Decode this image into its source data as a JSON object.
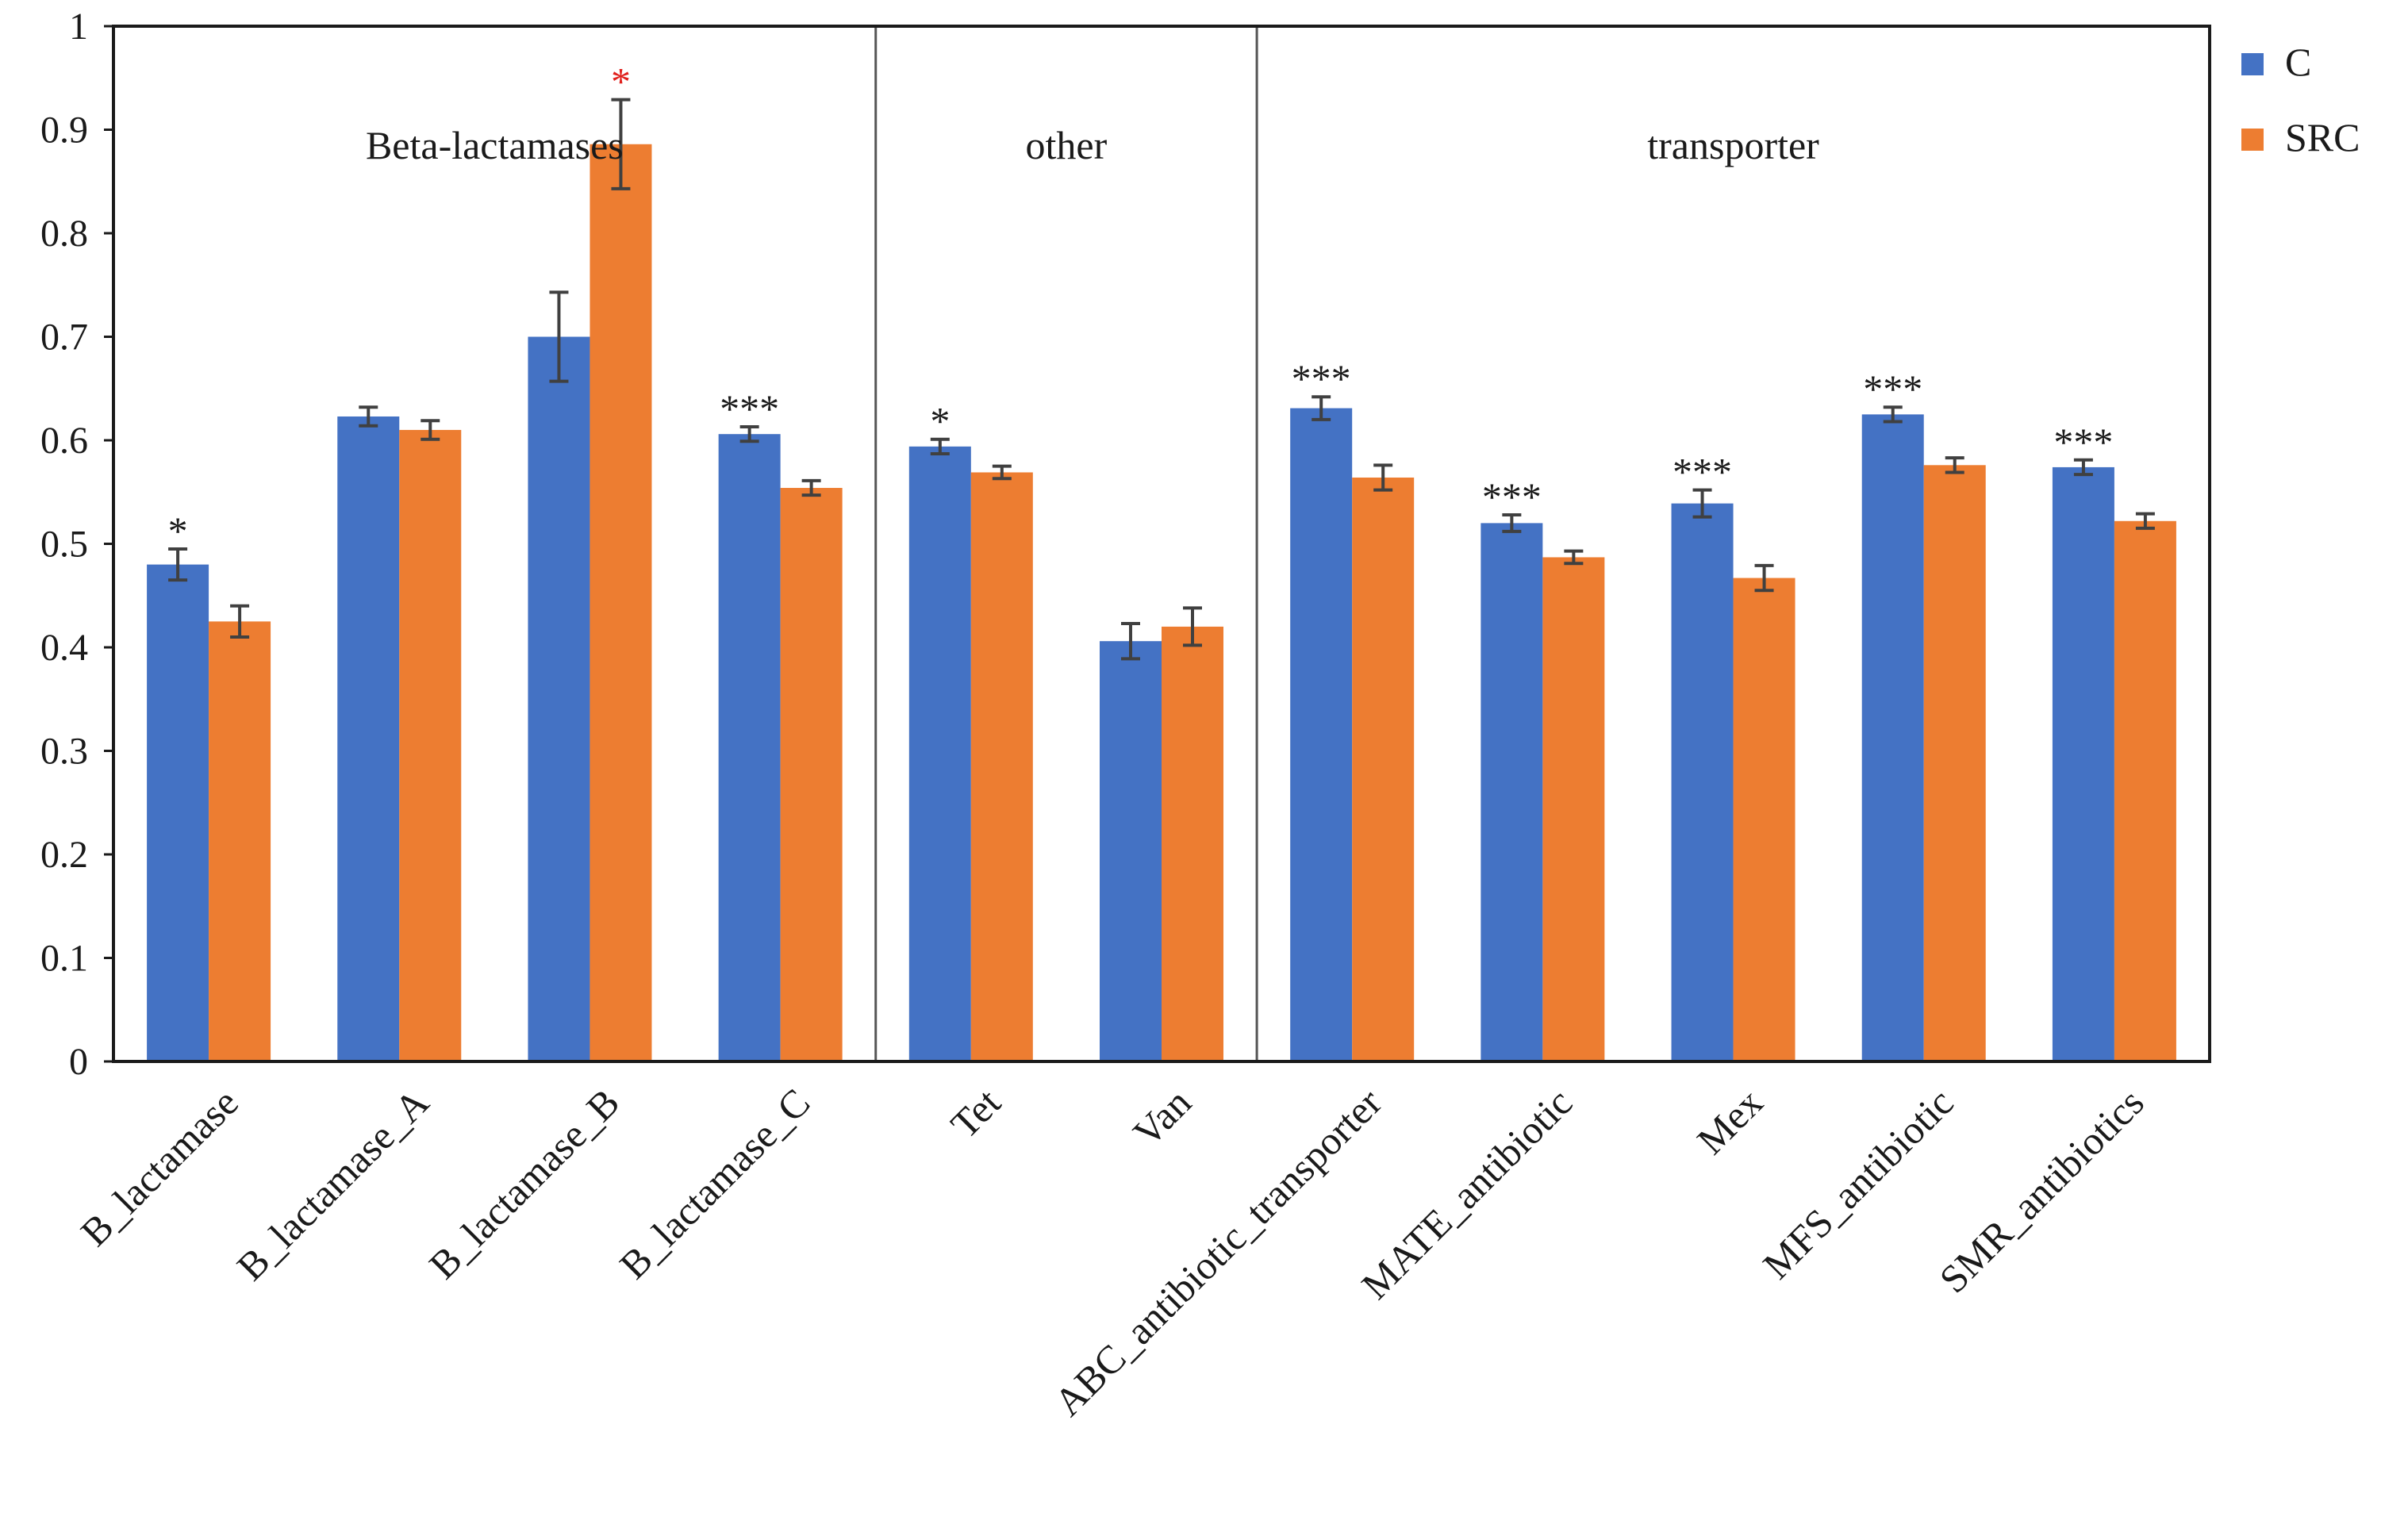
{
  "chart_data": {
    "type": "bar",
    "title": "",
    "xlabel": "",
    "ylabel": "",
    "ylim": [
      0,
      1
    ],
    "yticks": [
      "0",
      "0.1",
      "0.2",
      "0.3",
      "0.4",
      "0.5",
      "0.6",
      "0.7",
      "0.8",
      "0.9",
      "1"
    ],
    "grid": false,
    "legend_position": "top-right",
    "categories": [
      "B_lactamase",
      "B_lactamase_A",
      "B_lactamase_B",
      "B_lactamase_C",
      "Tet",
      "Van",
      "ABC_antibiotic_transporter",
      "MATE_antibiotic",
      "Mex",
      "MFS_antibiotic",
      "SMR_antibiotics"
    ],
    "series": [
      {
        "name": "C",
        "color": "#4472c4",
        "values": [
          0.48,
          0.623,
          0.7,
          0.606,
          0.594,
          0.406,
          0.631,
          0.52,
          0.539,
          0.625,
          0.574
        ],
        "errors": [
          0.015,
          0.009,
          0.043,
          0.007,
          0.007,
          0.017,
          0.011,
          0.008,
          0.013,
          0.007,
          0.007
        ]
      },
      {
        "name": "SRC",
        "color": "#ed7d31",
        "values": [
          0.425,
          0.61,
          0.886,
          0.554,
          0.569,
          0.42,
          0.564,
          0.487,
          0.467,
          0.576,
          0.522
        ],
        "errors": [
          0.015,
          0.009,
          0.043,
          0.007,
          0.006,
          0.018,
          0.012,
          0.006,
          0.012,
          0.007,
          0.007
        ]
      }
    ],
    "groups": [
      {
        "label": "Beta-lactamases",
        "start": 0,
        "end": 3
      },
      {
        "label": "other",
        "start": 4,
        "end": 5
      },
      {
        "label": "transporter",
        "start": 6,
        "end": 10
      }
    ],
    "annotations": [
      {
        "category_index": 0,
        "series_index": 0,
        "text": "*",
        "color": "#1a1a1a"
      },
      {
        "category_index": 2,
        "series_index": 1,
        "text": "*",
        "color": "#e0201c"
      },
      {
        "category_index": 3,
        "series_index": 0,
        "text": "***",
        "color": "#1a1a1a"
      },
      {
        "category_index": 4,
        "series_index": 0,
        "text": "*",
        "color": "#1a1a1a"
      },
      {
        "category_index": 6,
        "series_index": 0,
        "text": "***",
        "color": "#1a1a1a"
      },
      {
        "category_index": 7,
        "series_index": 0,
        "text": "***",
        "color": "#1a1a1a"
      },
      {
        "category_index": 8,
        "series_index": 0,
        "text": "***",
        "color": "#1a1a1a"
      },
      {
        "category_index": 9,
        "series_index": 0,
        "text": "***",
        "color": "#1a1a1a"
      },
      {
        "category_index": 10,
        "series_index": 0,
        "text": "***",
        "color": "#1a1a1a"
      }
    ]
  }
}
